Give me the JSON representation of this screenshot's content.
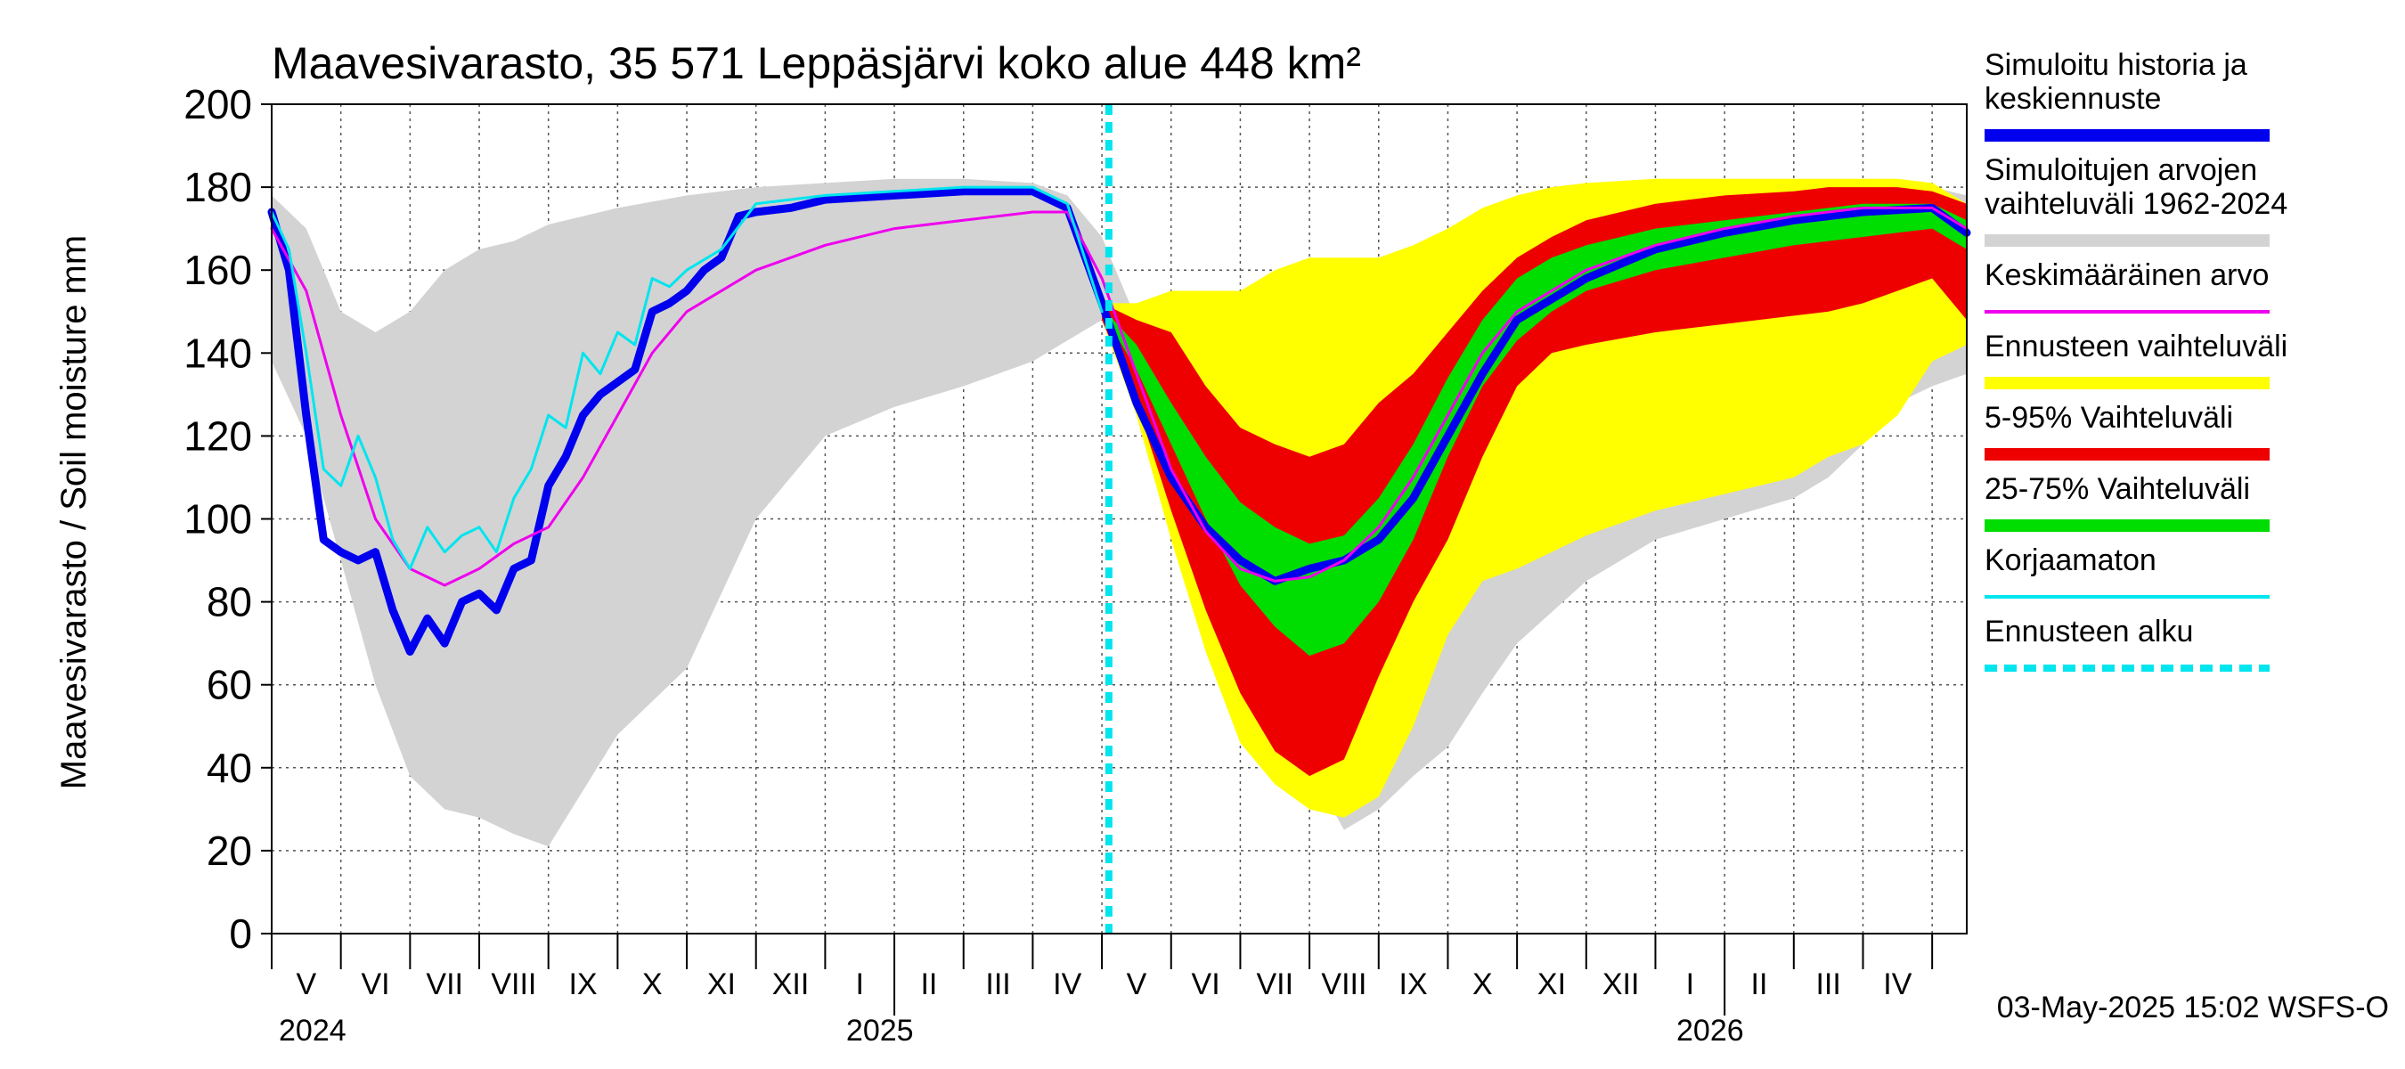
{
  "chart_data": {
    "type": "area",
    "title": "Maavesivarasto, 35 571 Leppäsjärvi koko alue 448 km²",
    "ylabel": "Maavesivarasto / Soil moisture   mm",
    "xlabel": "",
    "ylim": [
      0,
      200
    ],
    "yticks": [
      0,
      20,
      40,
      60,
      80,
      100,
      120,
      140,
      160,
      180,
      200
    ],
    "grid": true,
    "x_unit": "months since 2024-04-01",
    "xlim": [
      0,
      24.5
    ],
    "month_labels": [
      "V",
      "VI",
      "VII",
      "VIII",
      "IX",
      "X",
      "XI",
      "XII",
      "I",
      "II",
      "III",
      "IV",
      "V",
      "VI",
      "VII",
      "VIII",
      "IX",
      "X",
      "XI",
      "XII",
      "I",
      "II",
      "III",
      "IV"
    ],
    "year_labels": [
      {
        "x": 0,
        "label": "2024"
      },
      {
        "x": 8.2,
        "label": "2025"
      },
      {
        "x": 20.2,
        "label": "2026"
      }
    ],
    "year_boundaries": [
      9,
      21
    ],
    "forecast_start": 12.1,
    "footer": "03-May-2025 15:02 WSFS-O",
    "legend_position": "right",
    "legend": [
      {
        "label": "Simuloitu historia ja\nkeskiennuste",
        "color": "#0000ee",
        "style": "thick"
      },
      {
        "label": "Simuloitujen arvojen\nvaihteluväli 1962-2024",
        "color": "#d3d3d3",
        "style": "thick"
      },
      {
        "label": "Keskimääräinen arvo",
        "color": "#ee00ee",
        "style": "thin"
      },
      {
        "label": "Ennusteen vaihteluväli",
        "color": "#ffff00",
        "style": "thick"
      },
      {
        "label": "5-95% Vaihteluväli",
        "color": "#ee0000",
        "style": "thick"
      },
      {
        "label": "25-75% Vaihteluväli",
        "color": "#00dd00",
        "style": "thick"
      },
      {
        "label": "Korjaamaton",
        "color": "#00e5ee",
        "style": "thin"
      },
      {
        "label": "Ennusteen alku",
        "color": "#00e5ee",
        "style": "dashed"
      }
    ],
    "series": [
      {
        "name": "Simuloitujen arvojen vaihteluväli 1962-2024",
        "kind": "band",
        "color": "#d3d3d3",
        "x": [
          0,
          0.5,
          1,
          1.5,
          2,
          2.5,
          3,
          3.5,
          4,
          5,
          6,
          7,
          8,
          9,
          10,
          11,
          11.5,
          12,
          12.5,
          13,
          13.5,
          14,
          14.5,
          15,
          15.5,
          16,
          16.5,
          17,
          17.5,
          18,
          19,
          20,
          21,
          22,
          22.5,
          23,
          23.5,
          24,
          24.5
        ],
        "lower": [
          138,
          120,
          90,
          60,
          38,
          30,
          28,
          24,
          21,
          48,
          64,
          100,
          120,
          127,
          132,
          138,
          143,
          148,
          130,
          100,
          70,
          52,
          44,
          40,
          25,
          30,
          38,
          45,
          58,
          70,
          85,
          95,
          100,
          105,
          110,
          118,
          128,
          132,
          135
        ],
        "upper": [
          178,
          170,
          150,
          145,
          150,
          160,
          165,
          167,
          171,
          175,
          178,
          180,
          181,
          182,
          182,
          181,
          178,
          168,
          148,
          132,
          125,
          122,
          130,
          140,
          150,
          158,
          165,
          170,
          174,
          176,
          178,
          180,
          181,
          181,
          181,
          181,
          181,
          180,
          178
        ]
      },
      {
        "name": "Ennusteen vaihteluväli",
        "kind": "band",
        "color": "#ffff00",
        "x": [
          12,
          12.5,
          13,
          13.5,
          14,
          14.5,
          15,
          15.5,
          16,
          16.5,
          17,
          17.5,
          18,
          18.5,
          19,
          20,
          21,
          22,
          22.5,
          23,
          23.5,
          24,
          24.5
        ],
        "lower": [
          148,
          125,
          95,
          68,
          46,
          36,
          30,
          28,
          33,
          50,
          72,
          85,
          88,
          92,
          96,
          102,
          106,
          110,
          115,
          118,
          125,
          138,
          142
        ],
        "upper": [
          152,
          152,
          155,
          155,
          155,
          160,
          163,
          163,
          163,
          166,
          170,
          175,
          178,
          180,
          181,
          182,
          182,
          182,
          182,
          182,
          182,
          181,
          176
        ]
      },
      {
        "name": "5-95% Vaihteluväli",
        "kind": "band",
        "color": "#ee0000",
        "x": [
          12,
          12.5,
          13,
          13.5,
          14,
          14.5,
          15,
          15.5,
          16,
          16.5,
          17,
          17.5,
          18,
          18.5,
          19,
          20,
          21,
          22,
          22.5,
          23,
          23.5,
          24,
          24.5
        ],
        "lower": [
          148,
          128,
          102,
          78,
          58,
          44,
          38,
          42,
          62,
          80,
          95,
          115,
          132,
          140,
          142,
          145,
          147,
          149,
          150,
          152,
          155,
          158,
          148
        ],
        "upper": [
          152,
          148,
          145,
          132,
          122,
          118,
          115,
          118,
          128,
          135,
          145,
          155,
          163,
          168,
          172,
          176,
          178,
          179,
          180,
          180,
          180,
          179,
          176
        ]
      },
      {
        "name": "25-75% Vaihteluväli",
        "kind": "band",
        "color": "#00dd00",
        "x": [
          12,
          12.5,
          13,
          13.5,
          14,
          14.5,
          15,
          15.5,
          16,
          16.5,
          17,
          17.5,
          18,
          18.5,
          19,
          20,
          21,
          22,
          22.5,
          23,
          23.5,
          24,
          24.5
        ],
        "lower": [
          150,
          136,
          118,
          100,
          84,
          74,
          67,
          70,
          80,
          95,
          115,
          132,
          143,
          150,
          155,
          160,
          163,
          166,
          167,
          168,
          169,
          170,
          165
        ],
        "upper": [
          151,
          142,
          128,
          115,
          104,
          98,
          94,
          96,
          105,
          118,
          134,
          148,
          158,
          163,
          166,
          170,
          172,
          174,
          175,
          176,
          176,
          176,
          172
        ]
      },
      {
        "name": "Simuloitu historia ja keskiennuste",
        "kind": "line",
        "color": "#0000ee",
        "width": 9,
        "x": [
          0,
          0.25,
          0.5,
          0.75,
          1,
          1.25,
          1.5,
          1.75,
          2,
          2.25,
          2.5,
          2.75,
          3,
          3.25,
          3.5,
          3.75,
          4,
          4.25,
          4.5,
          4.75,
          5,
          5.25,
          5.5,
          5.75,
          6,
          6.25,
          6.5,
          6.75,
          7,
          7.5,
          8,
          9,
          10,
          11,
          11.5,
          12,
          12.5,
          13,
          13.5,
          14,
          14.5,
          15,
          15.5,
          16,
          16.5,
          17,
          17.5,
          18,
          19,
          20,
          21,
          22,
          23,
          24,
          24.5
        ],
        "y": [
          174,
          160,
          125,
          95,
          92,
          90,
          92,
          78,
          68,
          76,
          70,
          80,
          82,
          78,
          88,
          90,
          108,
          115,
          125,
          130,
          133,
          136,
          150,
          152,
          155,
          160,
          163,
          173,
          174,
          175,
          177,
          178,
          179,
          179,
          175,
          152,
          128,
          110,
          98,
          90,
          85,
          88,
          90,
          95,
          105,
          120,
          135,
          148,
          158,
          165,
          169,
          172,
          174,
          175,
          169
        ]
      },
      {
        "name": "Keskimääräinen arvo",
        "kind": "line",
        "color": "#ee00ee",
        "width": 3,
        "x": [
          0,
          0.5,
          1,
          1.5,
          2,
          2.5,
          3,
          3.5,
          4,
          4.5,
          5,
          5.5,
          6,
          7,
          8,
          9,
          10,
          11,
          11.5,
          12,
          12.5,
          13,
          13.5,
          14,
          14.5,
          15,
          15.5,
          16,
          16.5,
          17,
          17.5,
          18,
          19,
          20,
          21,
          22,
          23,
          24,
          24.5
        ],
        "y": [
          170,
          155,
          125,
          100,
          88,
          84,
          88,
          94,
          98,
          110,
          125,
          140,
          150,
          160,
          166,
          170,
          172,
          174,
          174,
          158,
          135,
          112,
          97,
          88,
          85,
          86,
          90,
          98,
          110,
          125,
          140,
          150,
          160,
          166,
          170,
          173,
          175,
          175,
          170
        ]
      },
      {
        "name": "Korjaamaton",
        "kind": "line",
        "color": "#00e5ee",
        "width": 3,
        "x": [
          0,
          0.25,
          0.5,
          0.75,
          1,
          1.25,
          1.5,
          1.75,
          2,
          2.25,
          2.5,
          2.75,
          3,
          3.25,
          3.5,
          3.75,
          4,
          4.25,
          4.5,
          4.75,
          5,
          5.25,
          5.5,
          5.75,
          6,
          6.5,
          7,
          8,
          9,
          10,
          11,
          11.5,
          12
        ],
        "y": [
          174,
          165,
          140,
          112,
          108,
          120,
          110,
          95,
          88,
          98,
          92,
          96,
          98,
          92,
          105,
          112,
          125,
          122,
          140,
          135,
          145,
          142,
          158,
          156,
          160,
          165,
          176,
          178,
          179,
          180,
          180,
          176,
          150
        ]
      }
    ]
  }
}
